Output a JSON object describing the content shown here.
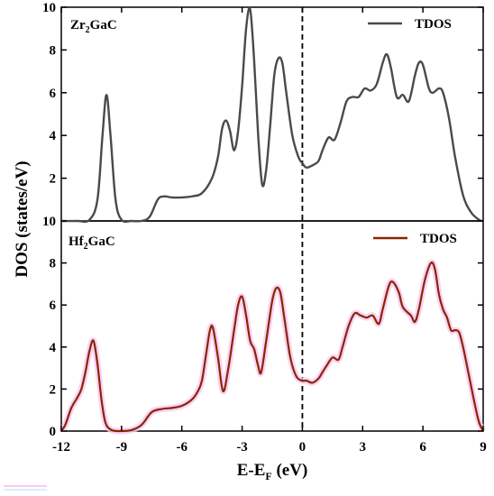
{
  "chart_data": {
    "type": "line",
    "ylabel": "DOS (states/eV)",
    "xlabel_main": "E-E",
    "xlabel_sub": "F",
    "xlabel_unit": " (eV)",
    "xlim": [
      -12,
      9
    ],
    "x_ticks": [
      "-12",
      "-9",
      "-6",
      "-3",
      "0",
      "3",
      "6",
      "9"
    ],
    "fermi_level": 0,
    "panels": [
      {
        "id": "top",
        "label_main": "Zr",
        "label_sub": "2",
        "label_rest": "GaC",
        "ylim": [
          0,
          10
        ],
        "y_ticks": [
          "10",
          "8",
          "6",
          "4",
          "2"
        ],
        "legend": "TDOS",
        "color": "#4a4a4a",
        "series": {
          "name": "TDOS",
          "points": [
            [
              -12,
              0
            ],
            [
              -11.2,
              0
            ],
            [
              -10.6,
              0.05
            ],
            [
              -10.2,
              1.0
            ],
            [
              -9.95,
              4.0
            ],
            [
              -9.75,
              5.9
            ],
            [
              -9.55,
              4.0
            ],
            [
              -9.3,
              1.0
            ],
            [
              -9.0,
              0.05
            ],
            [
              -8.5,
              0
            ],
            [
              -8.0,
              0
            ],
            [
              -7.6,
              0.2
            ],
            [
              -7.2,
              1.0
            ],
            [
              -6.9,
              1.15
            ],
            [
              -6.5,
              1.1
            ],
            [
              -6.0,
              1.1
            ],
            [
              -5.5,
              1.15
            ],
            [
              -5.0,
              1.3
            ],
            [
              -4.5,
              2.0
            ],
            [
              -4.2,
              3.0
            ],
            [
              -4.0,
              4.3
            ],
            [
              -3.8,
              4.7
            ],
            [
              -3.6,
              4.2
            ],
            [
              -3.4,
              3.3
            ],
            [
              -3.2,
              4.2
            ],
            [
              -3.0,
              6.3
            ],
            [
              -2.8,
              9.0
            ],
            [
              -2.6,
              9.9
            ],
            [
              -2.4,
              7.5
            ],
            [
              -2.2,
              4.0
            ],
            [
              -2.0,
              1.7
            ],
            [
              -1.8,
              2.4
            ],
            [
              -1.6,
              4.5
            ],
            [
              -1.4,
              6.8
            ],
            [
              -1.2,
              7.6
            ],
            [
              -1.0,
              7.4
            ],
            [
              -0.8,
              6.0
            ],
            [
              -0.5,
              4.0
            ],
            [
              -0.2,
              3.0
            ],
            [
              0.0,
              2.7
            ],
            [
              0.2,
              2.5
            ],
            [
              0.5,
              2.6
            ],
            [
              0.8,
              2.8
            ],
            [
              1.0,
              3.3
            ],
            [
              1.3,
              3.9
            ],
            [
              1.6,
              3.8
            ],
            [
              1.9,
              4.6
            ],
            [
              2.2,
              5.6
            ],
            [
              2.5,
              5.8
            ],
            [
              2.8,
              5.8
            ],
            [
              3.1,
              6.2
            ],
            [
              3.4,
              6.1
            ],
            [
              3.7,
              6.4
            ],
            [
              4.0,
              7.4
            ],
            [
              4.2,
              7.8
            ],
            [
              4.4,
              7.2
            ],
            [
              4.7,
              5.8
            ],
            [
              5.0,
              5.9
            ],
            [
              5.3,
              5.6
            ],
            [
              5.6,
              6.8
            ],
            [
              5.8,
              7.4
            ],
            [
              6.0,
              7.3
            ],
            [
              6.3,
              6.2
            ],
            [
              6.5,
              6.0
            ],
            [
              6.8,
              6.2
            ],
            [
              7.0,
              6.0
            ],
            [
              7.3,
              4.8
            ],
            [
              7.6,
              3.0
            ],
            [
              8.0,
              1.2
            ],
            [
              8.4,
              0.4
            ],
            [
              8.8,
              0.05
            ],
            [
              9.0,
              0
            ]
          ]
        }
      },
      {
        "id": "bottom",
        "label_main": "Hf",
        "label_sub": "2",
        "label_rest": "GaC",
        "ylim": [
          0,
          10
        ],
        "y_ticks": [
          "10",
          "8",
          "6",
          "4",
          "2",
          "0"
        ],
        "legend": "TDOS",
        "color": "#8b2500",
        "highlight": "#f7c8f2",
        "series": {
          "name": "TDOS",
          "points": [
            [
              -12,
              0
            ],
            [
              -11.8,
              0.3
            ],
            [
              -11.5,
              1.1
            ],
            [
              -11.2,
              1.6
            ],
            [
              -11.0,
              2.0
            ],
            [
              -10.8,
              2.8
            ],
            [
              -10.6,
              3.8
            ],
            [
              -10.4,
              4.3
            ],
            [
              -10.2,
              3.2
            ],
            [
              -10.0,
              1.5
            ],
            [
              -9.8,
              0.4
            ],
            [
              -9.5,
              0.05
            ],
            [
              -9.0,
              0
            ],
            [
              -8.5,
              0.05
            ],
            [
              -8.0,
              0.3
            ],
            [
              -7.5,
              0.9
            ],
            [
              -7.0,
              1.05
            ],
            [
              -6.5,
              1.1
            ],
            [
              -6.0,
              1.2
            ],
            [
              -5.5,
              1.5
            ],
            [
              -5.2,
              1.9
            ],
            [
              -5.0,
              2.4
            ],
            [
              -4.8,
              3.6
            ],
            [
              -4.6,
              4.8
            ],
            [
              -4.45,
              4.9
            ],
            [
              -4.2,
              3.5
            ],
            [
              -3.95,
              1.9
            ],
            [
              -3.7,
              2.9
            ],
            [
              -3.4,
              4.8
            ],
            [
              -3.2,
              6.0
            ],
            [
              -3.0,
              6.4
            ],
            [
              -2.8,
              5.5
            ],
            [
              -2.6,
              4.3
            ],
            [
              -2.4,
              3.9
            ],
            [
              -2.2,
              3.1
            ],
            [
              -2.05,
              2.8
            ],
            [
              -1.8,
              4.3
            ],
            [
              -1.5,
              6.2
            ],
            [
              -1.3,
              6.8
            ],
            [
              -1.1,
              6.6
            ],
            [
              -0.9,
              5.4
            ],
            [
              -0.6,
              3.5
            ],
            [
              -0.3,
              2.6
            ],
            [
              0.0,
              2.4
            ],
            [
              0.2,
              2.4
            ],
            [
              0.5,
              2.3
            ],
            [
              0.8,
              2.5
            ],
            [
              1.0,
              2.8
            ],
            [
              1.2,
              3.1
            ],
            [
              1.5,
              3.5
            ],
            [
              1.8,
              3.4
            ],
            [
              2.0,
              4.0
            ],
            [
              2.3,
              5.0
            ],
            [
              2.6,
              5.6
            ],
            [
              2.9,
              5.5
            ],
            [
              3.2,
              5.4
            ],
            [
              3.5,
              5.5
            ],
            [
              3.8,
              5.1
            ],
            [
              4.0,
              5.8
            ],
            [
              4.3,
              6.9
            ],
            [
              4.5,
              7.1
            ],
            [
              4.8,
              6.6
            ],
            [
              5.0,
              5.9
            ],
            [
              5.4,
              5.5
            ],
            [
              5.6,
              5.2
            ],
            [
              5.8,
              5.8
            ],
            [
              6.1,
              7.2
            ],
            [
              6.4,
              8.0
            ],
            [
              6.6,
              7.7
            ],
            [
              6.8,
              6.5
            ],
            [
              7.0,
              5.8
            ],
            [
              7.2,
              5.4
            ],
            [
              7.4,
              4.8
            ],
            [
              7.6,
              4.8
            ],
            [
              7.8,
              4.7
            ],
            [
              8.0,
              4.0
            ],
            [
              8.3,
              2.6
            ],
            [
              8.6,
              1.2
            ],
            [
              8.8,
              0.4
            ],
            [
              9.0,
              0
            ]
          ]
        }
      }
    ]
  }
}
